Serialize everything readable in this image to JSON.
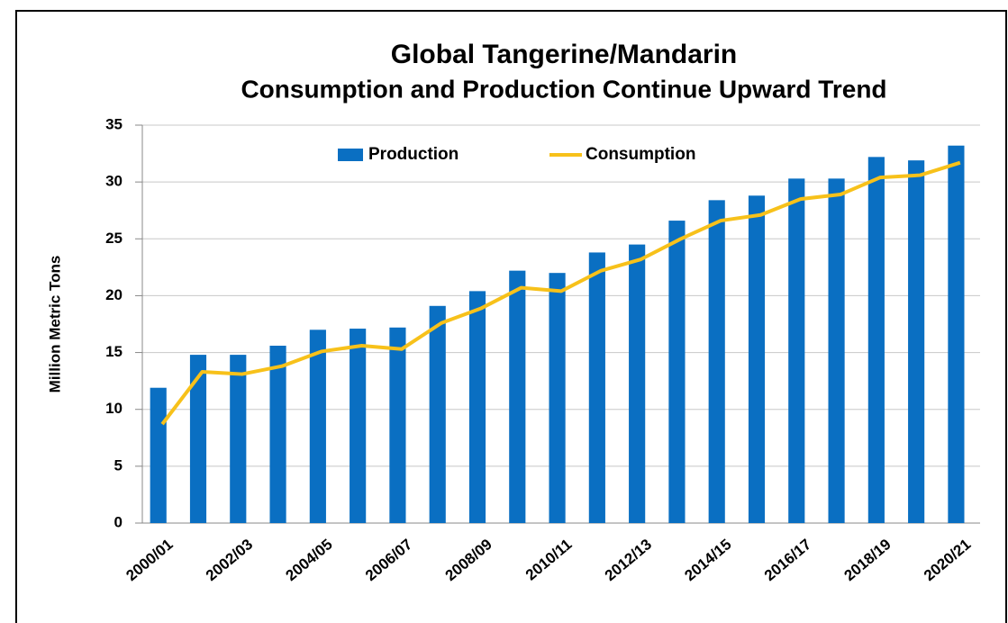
{
  "chart_data": {
    "type": "bar-line",
    "title_lines": [
      "Global Tangerine/Mandarin",
      "Consumption and Production Continue Upward Trend"
    ],
    "y_label": "Million Metric Tons",
    "categories": [
      "2000/01",
      null,
      "2002/03",
      null,
      "2004/05",
      null,
      "2006/07",
      null,
      "2008/09",
      null,
      "2010/11",
      null,
      "2012/13",
      null,
      "2014/15",
      null,
      "2016/17",
      null,
      "2018/19",
      null,
      "2020/21"
    ],
    "series": [
      {
        "name": "Production",
        "type": "bar",
        "color": "#0a6fc2",
        "values": [
          11.9,
          14.8,
          14.8,
          15.6,
          17.0,
          17.1,
          17.2,
          19.1,
          20.4,
          22.2,
          22.0,
          23.8,
          24.5,
          26.6,
          28.4,
          28.8,
          30.3,
          30.3,
          32.2,
          31.9,
          33.2
        ]
      },
      {
        "name": "Consumption",
        "type": "line",
        "color": "#f7c11a",
        "values": [
          8.7,
          13.3,
          13.1,
          13.8,
          15.1,
          15.6,
          15.3,
          17.6,
          18.9,
          20.7,
          20.4,
          22.2,
          23.2,
          25.0,
          26.6,
          27.1,
          28.5,
          28.9,
          30.4,
          30.6,
          31.7
        ]
      }
    ],
    "ylim": [
      0,
      35
    ],
    "yticks": [
      0,
      5,
      10,
      15,
      20,
      25,
      30,
      35
    ],
    "grid": true,
    "legend": "top"
  }
}
